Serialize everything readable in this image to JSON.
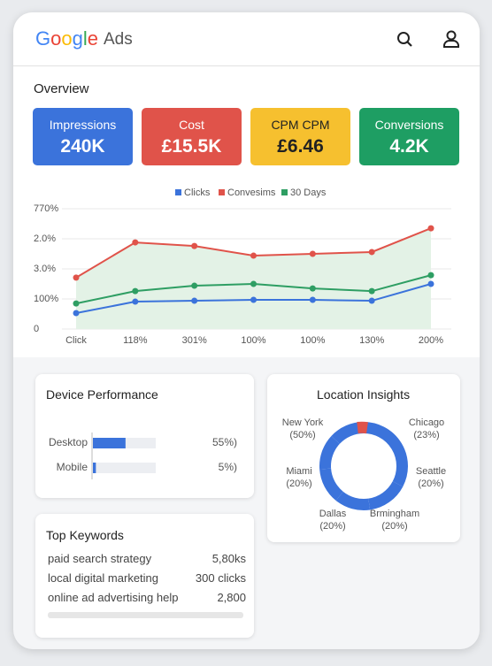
{
  "header": {
    "brand": "Google",
    "product": "Ads"
  },
  "overview": {
    "title": "Overview",
    "kpis": [
      {
        "label": "Impressions",
        "value": "240K",
        "color": "#3b73db"
      },
      {
        "label": "Cost",
        "value": "£15.5K",
        "color": "#e0534a"
      },
      {
        "label": "CPM CPM",
        "value": "£6.46",
        "color": "#f6c02f"
      },
      {
        "label": "Conversions",
        "value": "4.2K",
        "color": "#1e9e63"
      }
    ]
  },
  "chart_data": [
    {
      "type": "line",
      "categories": [
        "Click",
        "118%",
        "301%",
        "100%",
        "100%",
        "130%",
        "200%"
      ],
      "series": [
        {
          "name": "Clicks",
          "color": "#3b73db",
          "values": [
            0.53,
            0.91,
            0.94,
            0.97,
            0.97,
            0.94,
            1.5
          ]
        },
        {
          "name": "Convesims",
          "color": "#e0534a",
          "values": [
            1.71,
            2.88,
            2.76,
            2.44,
            2.5,
            2.56,
            3.35
          ]
        },
        {
          "name": "30 Days",
          "color": "#2e9e63",
          "values": [
            0.85,
            1.26,
            1.44,
            1.5,
            1.35,
            1.26,
            1.79
          ]
        }
      ],
      "ylim": [
        0,
        4
      ],
      "yticks": [
        0,
        {
          "value": 1,
          "label": "100%"
        },
        {
          "value": 2,
          "label": "3.0%"
        },
        {
          "value": 3,
          "label": "2.0%"
        },
        {
          "value": 4,
          "label": "770%"
        }
      ],
      "grid": true,
      "area_color": "#e3f2e6"
    },
    {
      "type": "bar",
      "title": "Device Performance",
      "orientation": "horizontal",
      "categories": [
        "Desktop",
        "Mobile"
      ],
      "values": [
        55,
        5
      ],
      "value_labels": [
        "55%)",
        "5%)"
      ],
      "color": "#3b73db"
    },
    {
      "type": "pie",
      "title": "Location Insights",
      "donut": true,
      "categories": [
        "New York",
        "Chicago",
        "Miami",
        "Seattle",
        "Dallas",
        "Brmingham"
      ],
      "values": [
        50,
        23,
        20,
        20,
        20,
        20
      ],
      "value_labels": [
        "(50%)",
        "(23%)",
        "(20%)",
        "(20%)",
        "(20%)",
        "(20%)"
      ],
      "color": "#3b73db"
    }
  ],
  "keywords": {
    "title": "Top Keywords",
    "rows": [
      [
        "paid search strategy",
        "5,80ks"
      ],
      [
        "local digital marketing",
        "300 clicks"
      ],
      [
        "online ad advertising help",
        "2,800"
      ]
    ]
  }
}
